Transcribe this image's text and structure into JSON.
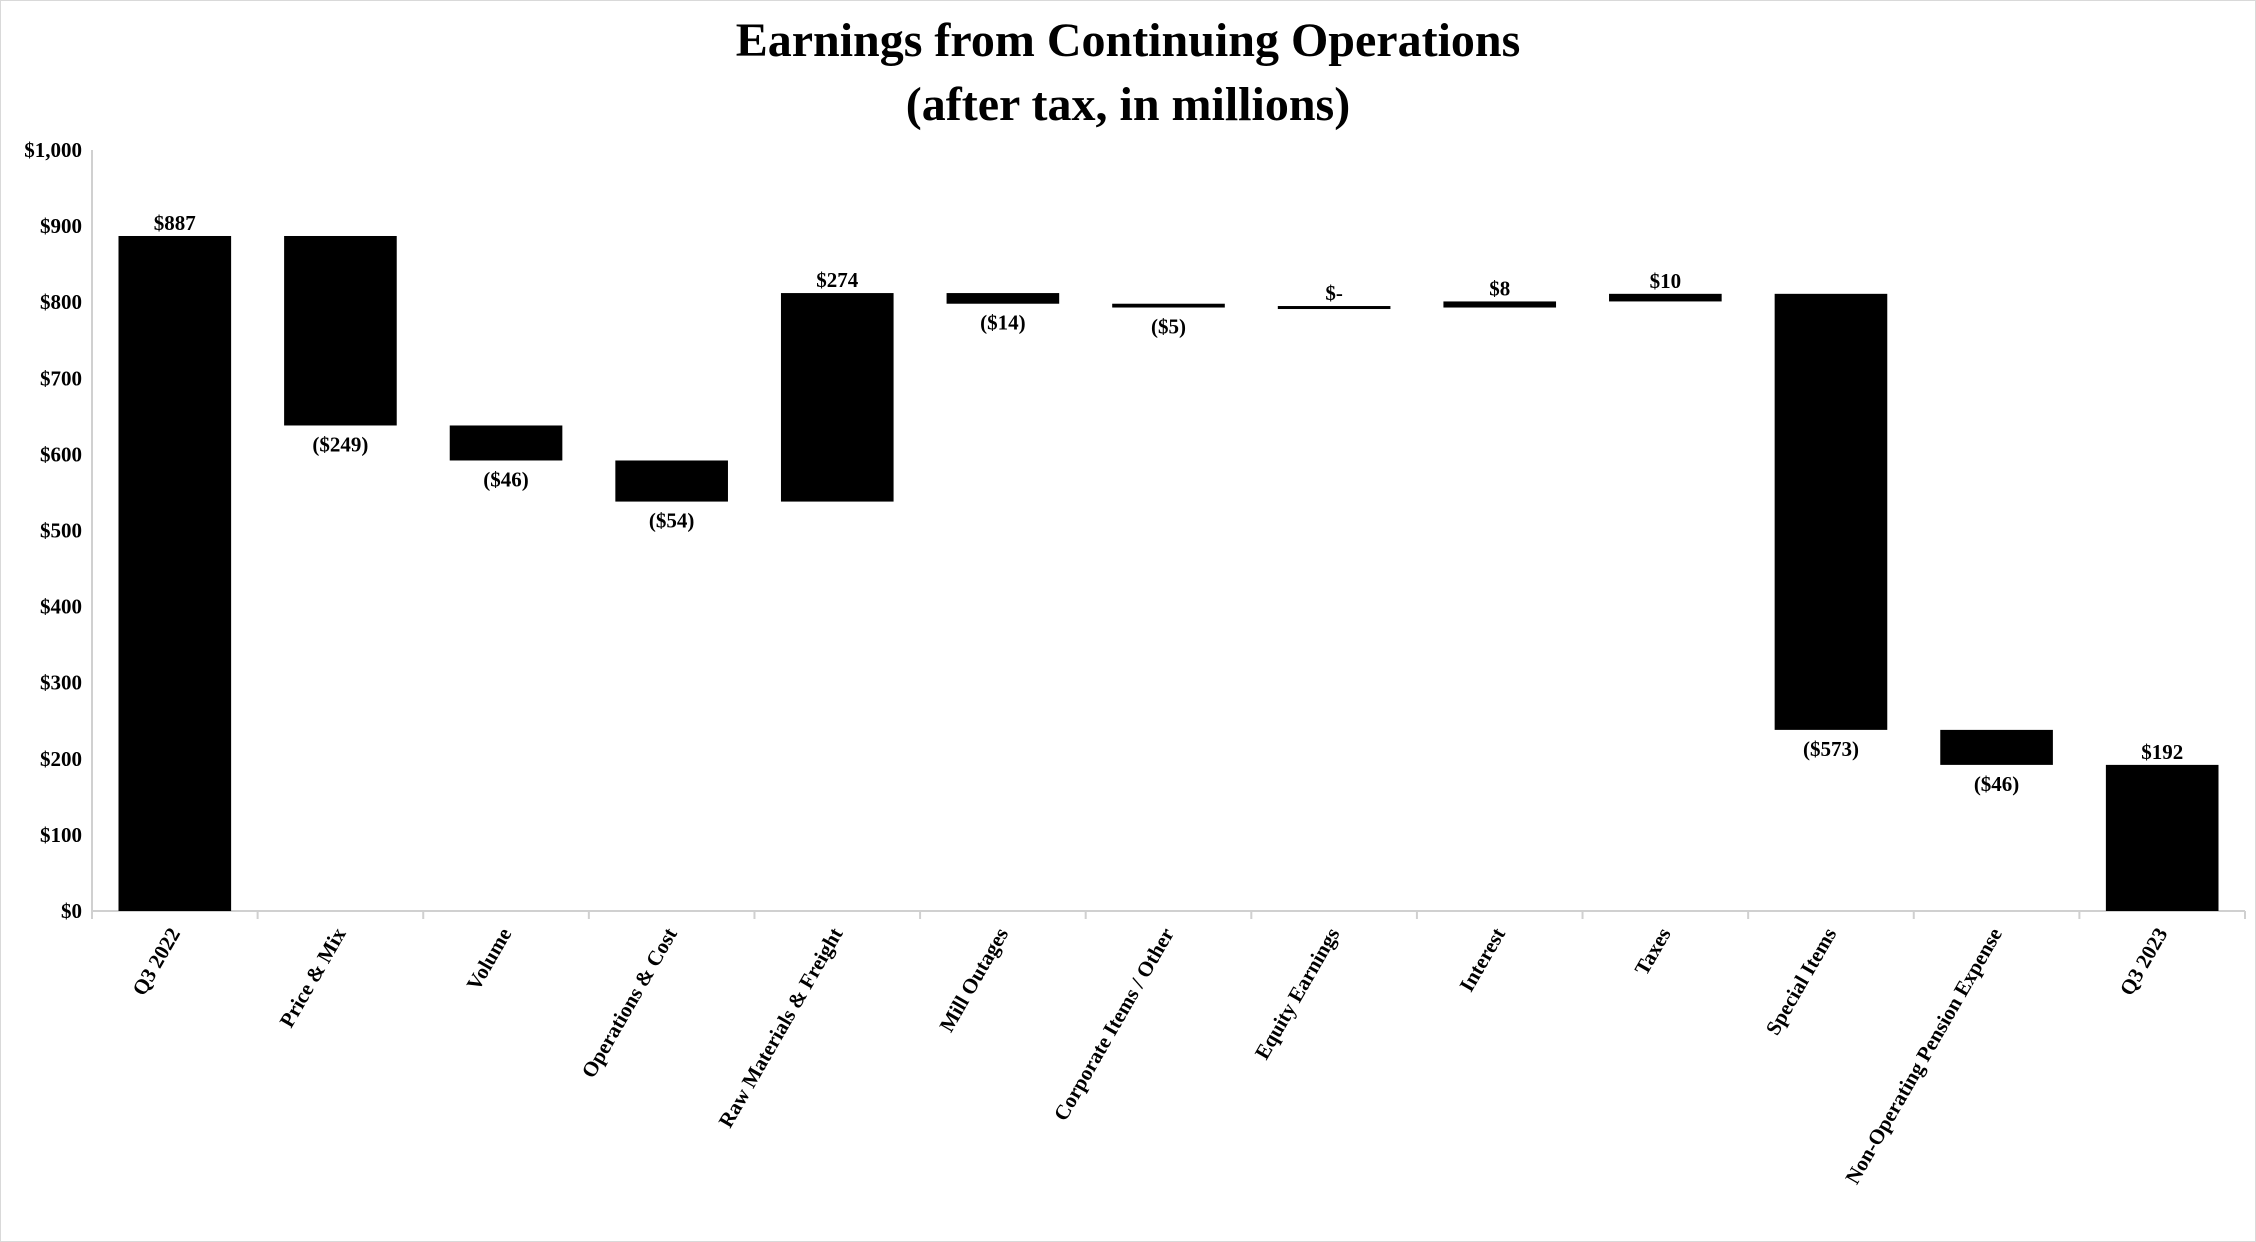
{
  "chart_data": {
    "type": "waterfall",
    "title": "Earnings from Continuing Operations",
    "subtitle": "(after tax, in millions)",
    "xlabel": "",
    "ylabel": "",
    "ylim": [
      0,
      1000
    ],
    "yticks": [
      0,
      100,
      200,
      300,
      400,
      500,
      600,
      700,
      800,
      900,
      1000
    ],
    "ytick_labels": [
      "$0",
      "$100",
      "$200",
      "$300",
      "$400",
      "$500",
      "$600",
      "$700",
      "$800",
      "$900",
      "$1,000"
    ],
    "grid": false,
    "bar_color": "#000000",
    "categories": [
      "Q3 2022",
      "Price & Mix",
      "Volume",
      "Operations & Cost",
      "Raw Materials & Freight",
      "Mill Outages",
      "Corporate Items / Other",
      "Equity Earnings",
      "Interest",
      "Taxes",
      "Special Items",
      "Non-Operating Pension Expense",
      "Q3 2023"
    ],
    "values": [
      887,
      -249,
      -46,
      -54,
      274,
      -14,
      -5,
      0,
      8,
      10,
      -573,
      -46,
      192
    ],
    "is_total": [
      true,
      false,
      false,
      false,
      false,
      false,
      false,
      false,
      false,
      false,
      false,
      false,
      true
    ],
    "data_labels": [
      "$887",
      "($249)",
      "($46)",
      "($54)",
      "$274",
      "($14)",
      "($5)",
      "$-",
      "$8",
      "$10",
      "($573)",
      "($46)",
      "$192"
    ]
  }
}
